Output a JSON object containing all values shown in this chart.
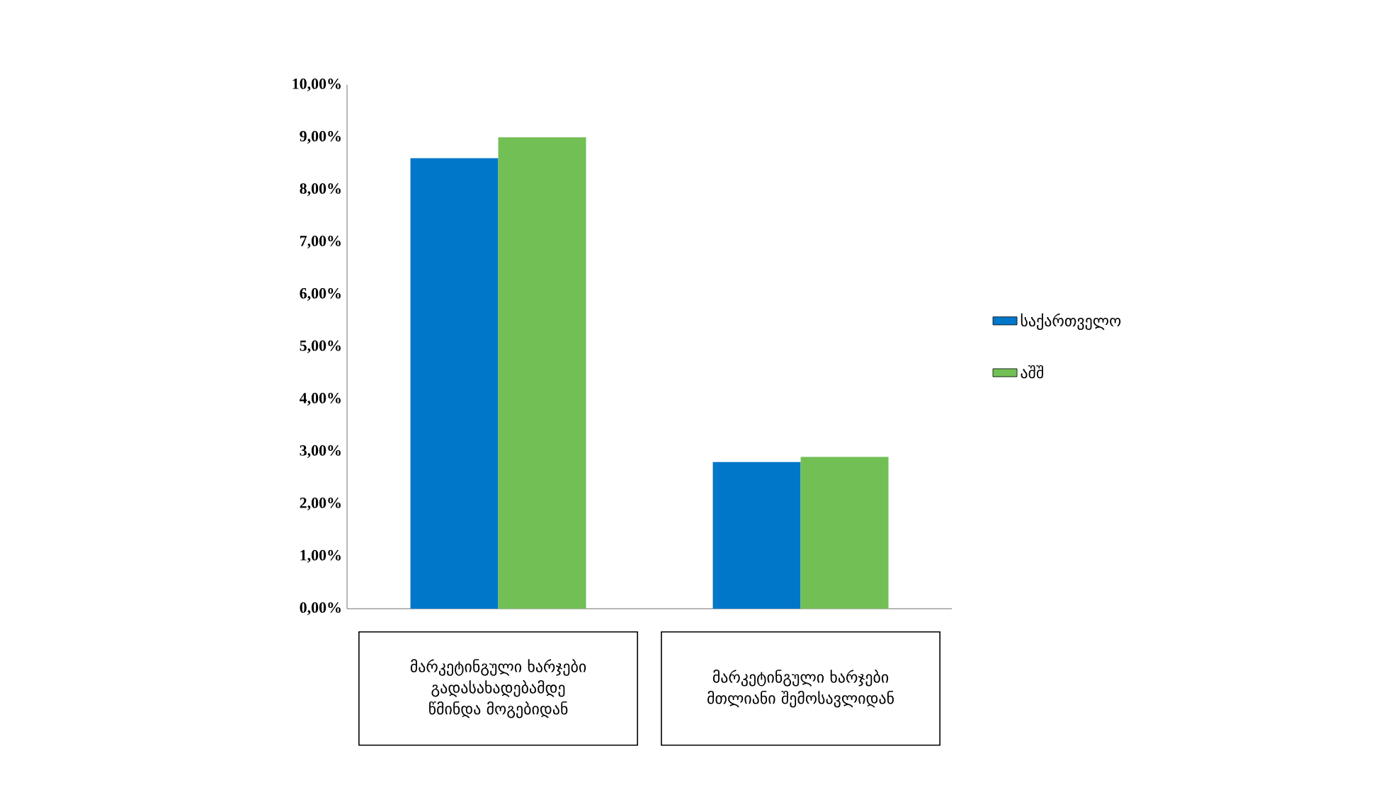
{
  "chart_data": {
    "type": "bar",
    "categories": [
      "მარკეტინგული ხარჯები გადასახადებამდე წმინდა მოგებიდან",
      "მარკეტინგული ხარჯები მთლიანი შემოსავლიდან"
    ],
    "series": [
      {
        "name": "საქართველო",
        "color": "#0077c8",
        "values": [
          8.6,
          2.8
        ]
      },
      {
        "name": "აშშ",
        "color": "#72bf56",
        "values": [
          9.0,
          2.9
        ]
      }
    ],
    "ylim": [
      0,
      10
    ],
    "yticks": [
      {
        "value": 0,
        "label": "0,00%"
      },
      {
        "value": 1,
        "label": "1,00%"
      },
      {
        "value": 2,
        "label": "2,00%"
      },
      {
        "value": 3,
        "label": "3,00%"
      },
      {
        "value": 4,
        "label": "4,00%"
      },
      {
        "value": 5,
        "label": "5,00%"
      },
      {
        "value": 6,
        "label": "6,00%"
      },
      {
        "value": 7,
        "label": "7,00%"
      },
      {
        "value": 8,
        "label": "8,00%"
      },
      {
        "value": 9,
        "label": "9,00%"
      },
      {
        "value": 10,
        "label": "10,00%"
      }
    ],
    "legend": "right",
    "grid": false
  }
}
